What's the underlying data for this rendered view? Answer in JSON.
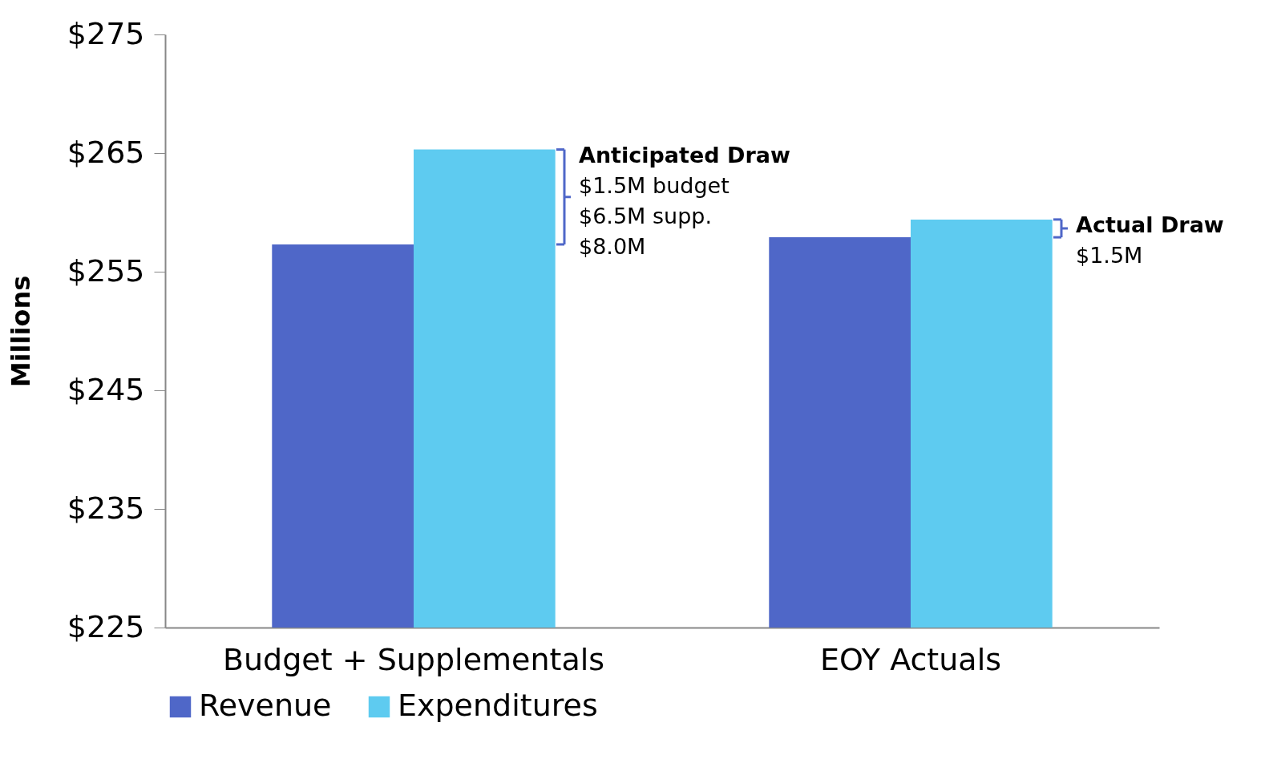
{
  "chart_data": {
    "type": "bar",
    "ylabel": "Millions",
    "categories": [
      "Budget + Supplementals",
      "EOY Actuals"
    ],
    "series": [
      {
        "name": "Revenue",
        "color": "#4f67c8",
        "values": [
          257.3,
          257.9
        ]
      },
      {
        "name": "Expenditures",
        "color": "#5ecbf0",
        "values": [
          265.3,
          259.4
        ]
      }
    ],
    "ylim": [
      225,
      275
    ],
    "yticks": [
      {
        "value": 225,
        "label": "$225"
      },
      {
        "value": 235,
        "label": "$235"
      },
      {
        "value": 245,
        "label": "$245"
      },
      {
        "value": 255,
        "label": "$255"
      },
      {
        "value": 265,
        "label": "$265"
      },
      {
        "value": 275,
        "label": "$275"
      }
    ],
    "annotations": [
      "Anticipated Draw\n$1.5M budget\n$6.5M supp.\n$8.0M",
      "Actual Draw\n$1.5M"
    ],
    "grid": false,
    "legend": "bottom"
  }
}
